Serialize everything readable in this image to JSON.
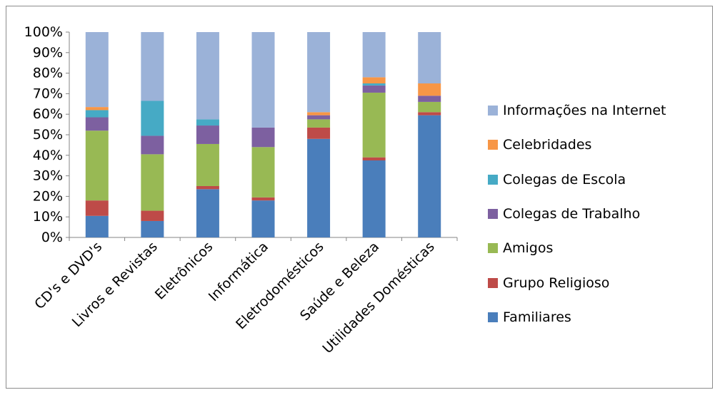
{
  "chart_data": {
    "type": "bar",
    "stacked": true,
    "percent": true,
    "categories": [
      "CD's e DVD's",
      "Livros e Revistas",
      "Eletrônicos",
      "Informática",
      "Eletrodomésticos",
      "Saúde e Beleza",
      "Utilidades Domésticas"
    ],
    "series": [
      {
        "name": "Familiares",
        "color": "#4a7ebb",
        "values": [
          10.5,
          8,
          23.5,
          18,
          48,
          37.5,
          59.5
        ]
      },
      {
        "name": "Grupo Religioso",
        "color": "#be4b48",
        "values": [
          7.5,
          5,
          1.5,
          1.5,
          5.5,
          1.5,
          1.5
        ]
      },
      {
        "name": "Amigos",
        "color": "#98b954",
        "values": [
          34,
          27.5,
          20.5,
          24.5,
          4,
          31.5,
          5
        ]
      },
      {
        "name": "Colegas de Trabalho",
        "color": "#7d60a0",
        "values": [
          6.5,
          9,
          9,
          9.5,
          2,
          3.5,
          3
        ]
      },
      {
        "name": "Colegas de Escola",
        "color": "#46aac5",
        "values": [
          3.5,
          17,
          3,
          0,
          0,
          1,
          0
        ]
      },
      {
        "name": "Celebridades",
        "color": "#f79646",
        "values": [
          1.5,
          0,
          0,
          0,
          1.5,
          3,
          6
        ]
      },
      {
        "name": "Informações na Internet",
        "color": "#9bb2d8",
        "values": [
          36.5,
          33.5,
          42.5,
          46.5,
          39,
          22,
          25
        ]
      }
    ],
    "ylim": [
      0,
      100
    ],
    "y_ticks": [
      "0%",
      "10%",
      "20%",
      "30%",
      "40%",
      "50%",
      "60%",
      "70%",
      "80%",
      "90%",
      "100%"
    ],
    "legend_position": "right",
    "grid": false
  }
}
